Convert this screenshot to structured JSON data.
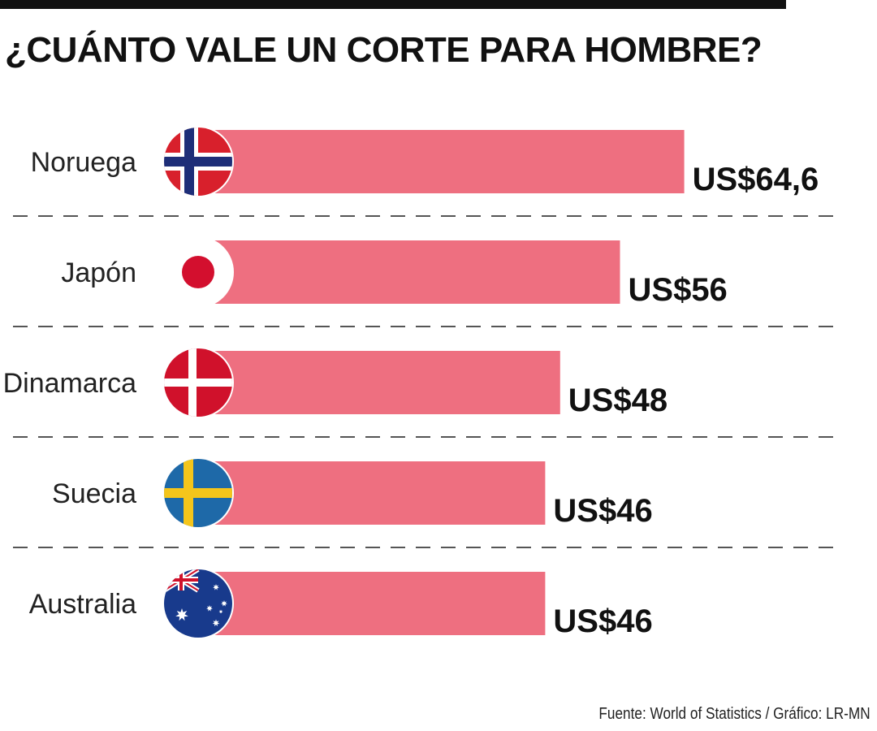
{
  "header": {
    "title": "¿CUÁNTO VALE UN CORTE PARA HOMBRE?"
  },
  "footer": {
    "source": "Fuente: World of Statistics / Gráfico: LR-MN"
  },
  "colors": {
    "bar": "#ee6f80",
    "text": "#111111",
    "divider": "#555555"
  },
  "chart_data": {
    "type": "bar",
    "orientation": "horizontal",
    "title": "¿CUÁNTO VALE UN CORTE PARA HOMBRE?",
    "categories": [
      "Noruega",
      "Japón",
      "Dinamarca",
      "Suecia",
      "Australia"
    ],
    "values": [
      64.6,
      56,
      48,
      46,
      46
    ],
    "value_labels": [
      "US$64,6",
      "US$56",
      "US$48",
      "US$46",
      "US$46"
    ],
    "flags": [
      "norway-flag-icon",
      "japan-flag-icon",
      "denmark-flag-icon",
      "sweden-flag-icon",
      "australia-flag-icon"
    ],
    "xlabel": "",
    "ylabel": "",
    "grid": false,
    "legend": "none"
  }
}
